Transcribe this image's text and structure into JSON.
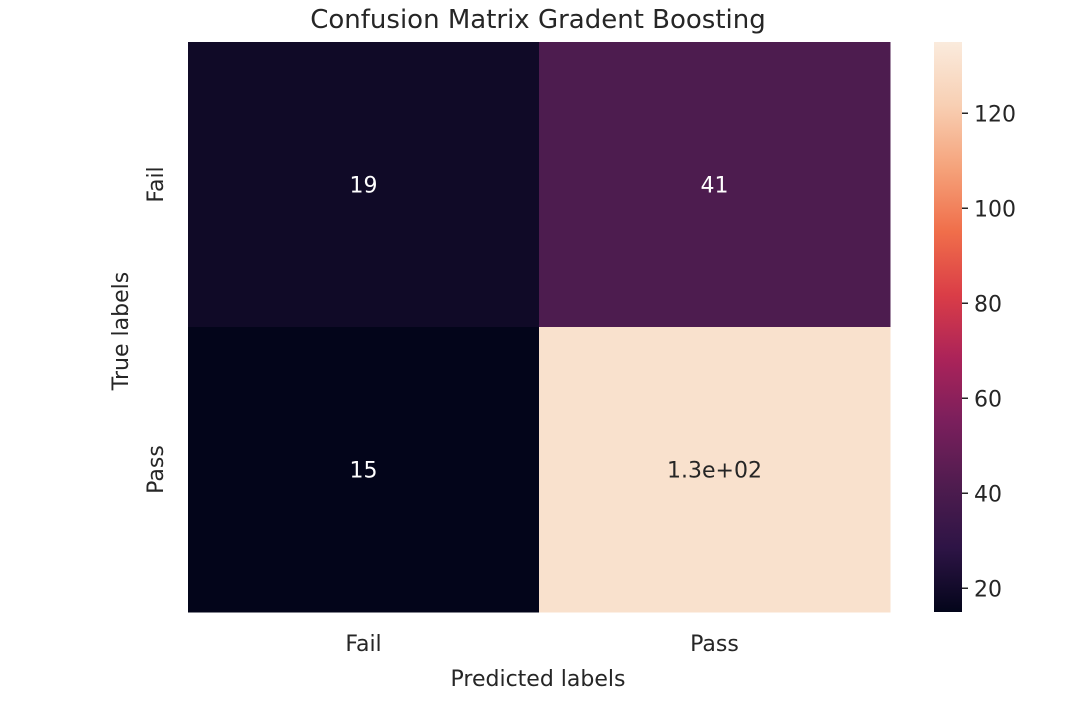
{
  "chart_data": {
    "type": "heatmap",
    "title": "Confusion Matrix Gradent Boosting",
    "xlabel": "Predicted labels",
    "ylabel": "True labels",
    "x_categories": [
      "Fail",
      "Pass"
    ],
    "y_categories": [
      "Fail",
      "Pass"
    ],
    "values": [
      [
        19,
        41
      ],
      [
        15,
        130
      ]
    ],
    "cell_labels": [
      [
        "19",
        "41"
      ],
      [
        "15",
        "1.3e+02"
      ]
    ],
    "colorbar": {
      "range": [
        15,
        135
      ],
      "ticks": [
        20,
        40,
        60,
        80,
        100,
        120
      ],
      "tick_labels": [
        "20",
        "40",
        "60",
        "80",
        "100",
        "120"
      ],
      "colormap": "rocket",
      "stops": [
        "#03051a",
        "#2d1445",
        "#4f1c4f",
        "#7a1f5c",
        "#ab2359",
        "#da3d47",
        "#f06e4a",
        "#f5a27a",
        "#f8cfb3",
        "#faebdd"
      ]
    },
    "annotation_colors": {
      "on_dark": "#ffffff",
      "on_light": "#262626"
    }
  }
}
